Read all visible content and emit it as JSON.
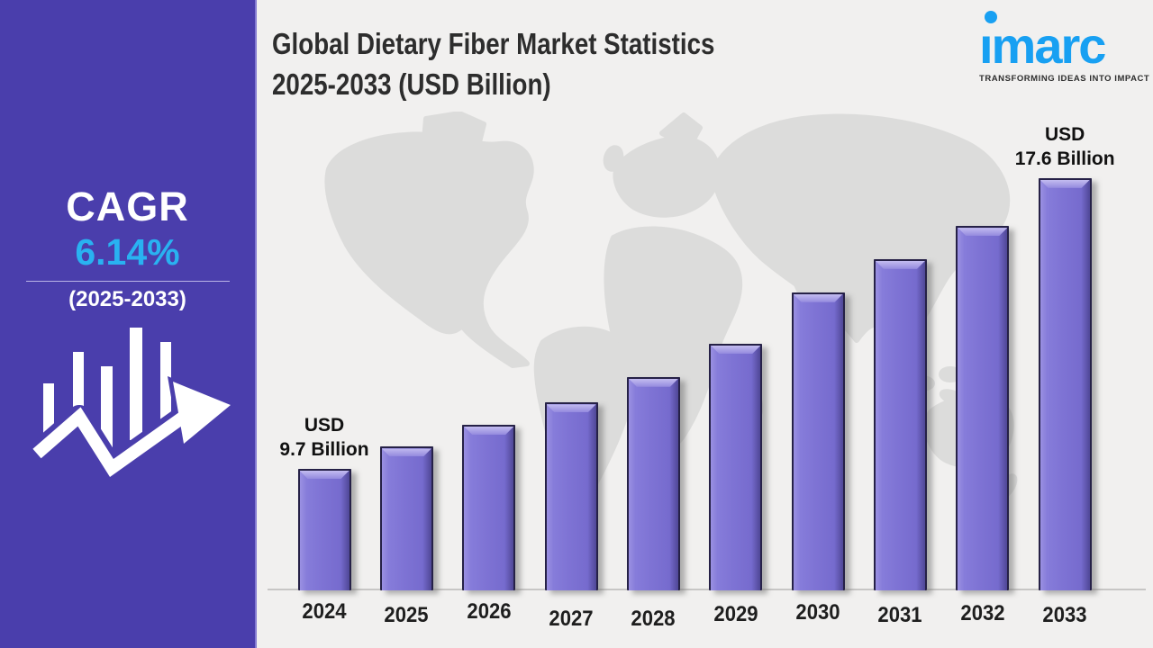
{
  "page": {
    "background_color": "#f1f0ef"
  },
  "sidebar": {
    "background_color": "#4a3eac",
    "cagr_label": "CAGR",
    "cagr_value": "6.14%",
    "cagr_value_color": "#29b2f1",
    "cagr_period": "(2025-2033)",
    "icon": "bar-chart-trend-arrow-icon"
  },
  "header": {
    "title_line1": "Global Dietary Fiber Market Statistics",
    "title_line2": "2025-2033 (USD Billion)"
  },
  "logo": {
    "wordmark": "imarc",
    "tagline": "TRANSFORMING IDEAS INTO IMPACT",
    "brand_color": "#18a0f2"
  },
  "chart_data": {
    "type": "bar",
    "title": "Global Dietary Fiber Market Statistics 2025-2033 (USD Billion)",
    "unit": "USD Billion",
    "categories": [
      "2024",
      "2025",
      "2026",
      "2027",
      "2028",
      "2029",
      "2030",
      "2031",
      "2032",
      "2033"
    ],
    "values": [
      9.7,
      10.3,
      10.9,
      11.5,
      12.2,
      13.1,
      14.5,
      15.4,
      16.3,
      17.6
    ],
    "labeled_values_note": "only first and last bars carry data labels; middle values estimated from bar heights",
    "annotations": [
      {
        "index": 0,
        "lines": [
          "USD",
          "9.7 Billion"
        ]
      },
      {
        "index": 9,
        "lines": [
          "USD",
          "17.6 Billion"
        ]
      }
    ],
    "bar_color": "#7e73d4",
    "bar_edge_light": "#c3bcf0",
    "bar_edge_dark": "#4f4796",
    "bar_outline": "#262147",
    "y_axis_start": 6.4,
    "grid": false,
    "legend": false,
    "background": "world-map-silhouette"
  }
}
